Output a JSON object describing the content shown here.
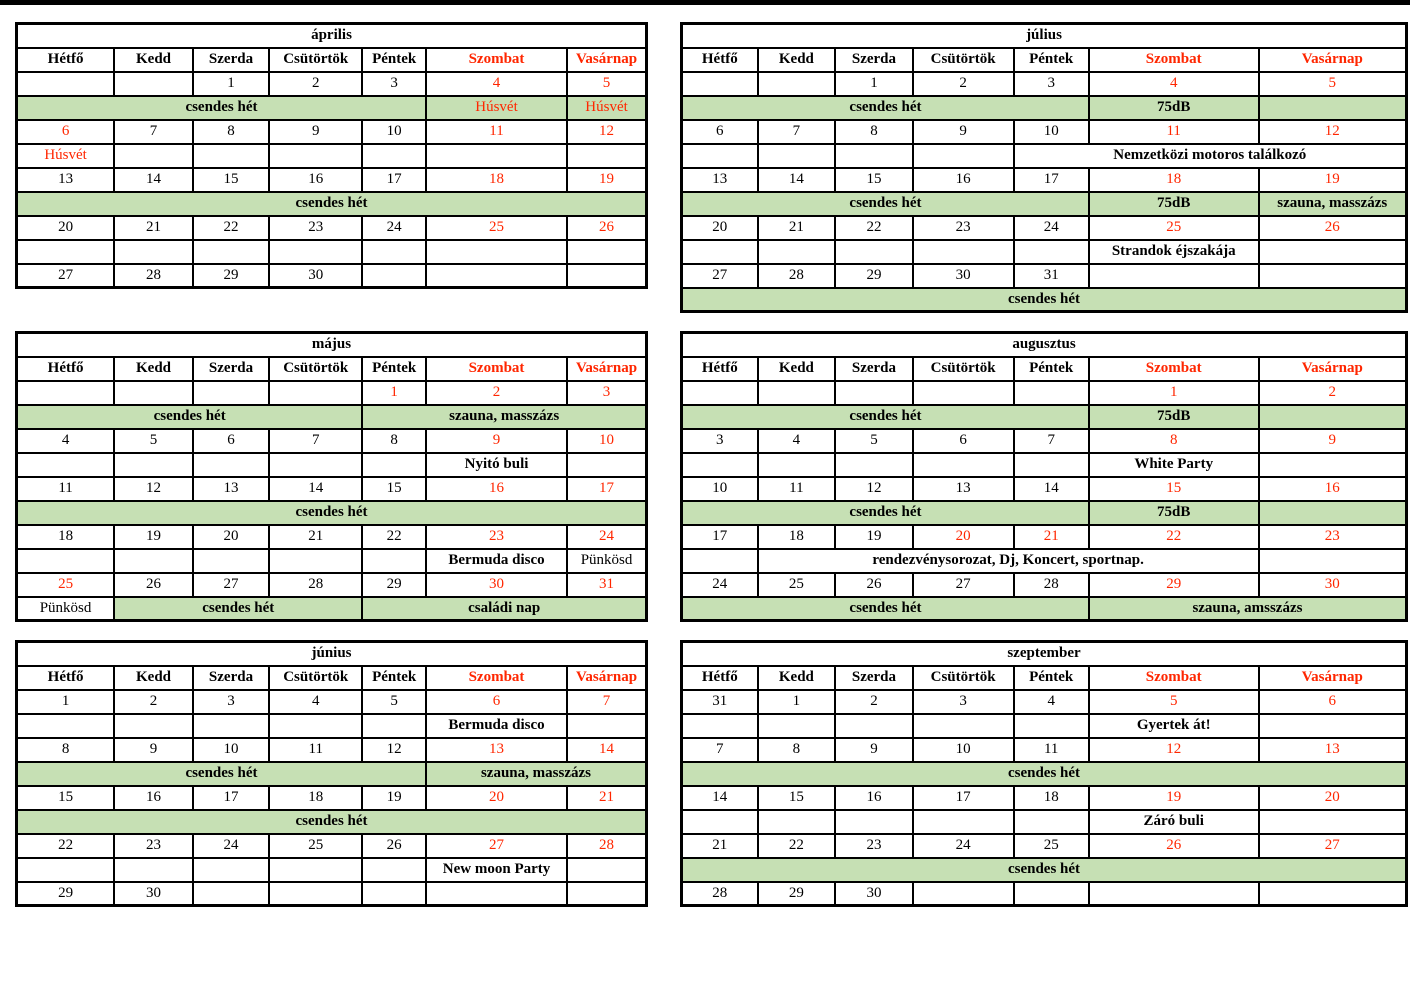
{
  "colors": {
    "red": "#ff2600",
    "green": "#c6e0b4",
    "border": "#000000",
    "top_rule": "#000000"
  },
  "weekdays": [
    "Hétfő",
    "Kedd",
    "Szerda",
    "Csütörtök",
    "Péntek",
    "Szombat",
    "Vasárnap"
  ],
  "legend": {
    "quiet_week_label": "csendes hét"
  },
  "months": [
    {
      "name": "április",
      "rows": [
        {
          "type": "d",
          "cells": [
            "",
            "",
            "1",
            "2",
            "3",
            "4",
            "5"
          ],
          "red": [
            5,
            6
          ]
        },
        {
          "type": "e",
          "cells": [
            {
              "t": "csendes hét",
              "span": 5,
              "green": true,
              "bold": true
            },
            {
              "t": "Húsvét",
              "green": true,
              "red": true
            },
            {
              "t": "Húsvét",
              "green": true,
              "red": true
            }
          ]
        },
        {
          "type": "d",
          "cells": [
            "6",
            "7",
            "8",
            "9",
            "10",
            "11",
            "12"
          ],
          "red": [
            0,
            5,
            6
          ]
        },
        {
          "type": "e",
          "cells": [
            {
              "t": "Húsvét",
              "red": true
            },
            {},
            {},
            {},
            {},
            {},
            {}
          ]
        },
        {
          "type": "d",
          "cells": [
            "13",
            "14",
            "15",
            "16",
            "17",
            "18",
            "19"
          ],
          "red": [
            5,
            6
          ]
        },
        {
          "type": "e",
          "cells": [
            {
              "t": "csendes hét",
              "span": 7,
              "green": true,
              "bold": true
            }
          ]
        },
        {
          "type": "d",
          "cells": [
            "20",
            "21",
            "22",
            "23",
            "24",
            "25",
            "26"
          ],
          "red": [
            5,
            6
          ]
        },
        {
          "type": "e",
          "cells": [
            {},
            {},
            {},
            {},
            {},
            {},
            {}
          ]
        },
        {
          "type": "d",
          "cells": [
            "27",
            "28",
            "29",
            "30",
            "",
            "",
            ""
          ],
          "red": []
        }
      ]
    },
    {
      "name": "július",
      "rows": [
        {
          "type": "d",
          "cells": [
            "",
            "",
            "1",
            "2",
            "3",
            "4",
            "5"
          ],
          "red": [
            5,
            6
          ]
        },
        {
          "type": "e",
          "cells": [
            {
              "t": "csendes hét",
              "span": 5,
              "green": true,
              "bold": true
            },
            {
              "t": "75dB",
              "green": true,
              "bold": true
            },
            {
              "green": true
            }
          ]
        },
        {
          "type": "d",
          "cells": [
            "6",
            "7",
            "8",
            "9",
            "10",
            "11",
            "12"
          ],
          "red": [
            5,
            6
          ]
        },
        {
          "type": "e",
          "cells": [
            {},
            {},
            {},
            {},
            {
              "t": "Nemzetközi motoros találkozó",
              "span": 3,
              "bold": true
            }
          ]
        },
        {
          "type": "d",
          "cells": [
            "13",
            "14",
            "15",
            "16",
            "17",
            "18",
            "19"
          ],
          "red": [
            5,
            6
          ]
        },
        {
          "type": "e",
          "cells": [
            {
              "t": "csendes hét",
              "span": 5,
              "green": true,
              "bold": true
            },
            {
              "t": "75dB",
              "green": true,
              "bold": true
            },
            {
              "t": "szauna, masszázs",
              "green": true,
              "bold": true
            }
          ]
        },
        {
          "type": "d",
          "cells": [
            "20",
            "21",
            "22",
            "23",
            "24",
            "25",
            "26"
          ],
          "red": [
            5,
            6
          ]
        },
        {
          "type": "e",
          "cells": [
            {},
            {},
            {},
            {},
            {},
            {
              "t": "Strandok éjszakája",
              "bold": true
            },
            {}
          ]
        },
        {
          "type": "d",
          "cells": [
            "27",
            "28",
            "29",
            "30",
            "31",
            "",
            ""
          ],
          "red": []
        },
        {
          "type": "e",
          "cells": [
            {
              "t": "csendes hét",
              "span": 7,
              "green": true,
              "bold": true
            }
          ]
        }
      ]
    },
    {
      "name": "május",
      "rows": [
        {
          "type": "d",
          "cells": [
            "",
            "",
            "",
            "",
            "1",
            "2",
            "3"
          ],
          "red": [
            4,
            5,
            6
          ]
        },
        {
          "type": "e",
          "cells": [
            {
              "t": "csendes hét",
              "span": 4,
              "green": true,
              "bold": true
            },
            {
              "t": "szauna, masszázs",
              "span": 3,
              "green": true,
              "bold": true
            }
          ]
        },
        {
          "type": "d",
          "cells": [
            "4",
            "5",
            "6",
            "7",
            "8",
            "9",
            "10"
          ],
          "red": [
            5,
            6
          ]
        },
        {
          "type": "e",
          "cells": [
            {},
            {},
            {},
            {},
            {},
            {
              "t": "Nyitó buli",
              "bold": true
            },
            {}
          ]
        },
        {
          "type": "d",
          "cells": [
            "11",
            "12",
            "13",
            "14",
            "15",
            "16",
            "17"
          ],
          "red": [
            5,
            6
          ]
        },
        {
          "type": "e",
          "cells": [
            {
              "t": "csendes hét",
              "span": 7,
              "green": true,
              "bold": true
            }
          ]
        },
        {
          "type": "d",
          "cells": [
            "18",
            "19",
            "20",
            "21",
            "22",
            "23",
            "24"
          ],
          "red": [
            5,
            6
          ]
        },
        {
          "type": "e",
          "cells": [
            {},
            {},
            {},
            {},
            {},
            {
              "t": "Bermuda disco",
              "bold": true
            },
            {
              "t": "Pünkösd"
            }
          ]
        },
        {
          "type": "d",
          "cells": [
            "25",
            "26",
            "27",
            "28",
            "29",
            "30",
            "31"
          ],
          "red": [
            0,
            5,
            6
          ]
        },
        {
          "type": "e",
          "cells": [
            {
              "t": "Pünkösd"
            },
            {
              "t": "csendes hét",
              "span": 3,
              "green": true,
              "bold": true
            },
            {
              "t": "családi nap",
              "span": 3,
              "green": true,
              "bold": true
            }
          ]
        }
      ]
    },
    {
      "name": "augusztus",
      "rows": [
        {
          "type": "d",
          "cells": [
            "",
            "",
            "",
            "",
            "",
            "1",
            "2"
          ],
          "red": [
            5,
            6
          ]
        },
        {
          "type": "e",
          "cells": [
            {
              "t": "csendes hét",
              "span": 5,
              "green": true,
              "bold": true
            },
            {
              "t": "75dB",
              "green": true,
              "bold": true
            },
            {
              "green": true
            }
          ]
        },
        {
          "type": "d",
          "cells": [
            "3",
            "4",
            "5",
            "6",
            "7",
            "8",
            "9"
          ],
          "red": [
            5,
            6
          ]
        },
        {
          "type": "e",
          "cells": [
            {},
            {},
            {},
            {},
            {},
            {
              "t": "White Party",
              "bold": true
            },
            {}
          ]
        },
        {
          "type": "d",
          "cells": [
            "10",
            "11",
            "12",
            "13",
            "14",
            "15",
            "16"
          ],
          "red": [
            5,
            6
          ]
        },
        {
          "type": "e",
          "cells": [
            {
              "t": "csendes hét",
              "span": 5,
              "green": true,
              "bold": true
            },
            {
              "t": "75dB",
              "green": true,
              "bold": true
            },
            {
              "green": true
            }
          ]
        },
        {
          "type": "d",
          "cells": [
            "17",
            "18",
            "19",
            "20",
            "21",
            "22",
            "23"
          ],
          "red": [
            3,
            4,
            5,
            6
          ]
        },
        {
          "type": "e",
          "cells": [
            {},
            {
              "t": "rendezvénysorozat, Dj, Koncert, sportnap.",
              "span": 5,
              "bold": true
            },
            {}
          ]
        },
        {
          "type": "d",
          "cells": [
            "24",
            "25",
            "26",
            "27",
            "28",
            "29",
            "30"
          ],
          "red": [
            5,
            6
          ]
        },
        {
          "type": "e",
          "cells": [
            {
              "t": "csendes hét",
              "span": 5,
              "green": true,
              "bold": true
            },
            {
              "t": "szauna, amsszázs",
              "span": 2,
              "green": true,
              "bold": true
            }
          ]
        }
      ]
    },
    {
      "name": "június",
      "rows": [
        {
          "type": "d",
          "cells": [
            "1",
            "2",
            "3",
            "4",
            "5",
            "6",
            "7"
          ],
          "red": [
            5,
            6
          ]
        },
        {
          "type": "e",
          "cells": [
            {},
            {},
            {},
            {},
            {},
            {
              "t": "Bermuda disco",
              "bold": true
            },
            {}
          ]
        },
        {
          "type": "d",
          "cells": [
            "8",
            "9",
            "10",
            "11",
            "12",
            "13",
            "14"
          ],
          "red": [
            5,
            6
          ]
        },
        {
          "type": "e",
          "cells": [
            {
              "t": "csendes hét",
              "span": 5,
              "green": true,
              "bold": true
            },
            {
              "t": "szauna, masszázs",
              "span": 2,
              "green": true,
              "bold": true
            }
          ]
        },
        {
          "type": "d",
          "cells": [
            "15",
            "16",
            "17",
            "18",
            "19",
            "20",
            "21"
          ],
          "red": [
            5,
            6
          ]
        },
        {
          "type": "e",
          "cells": [
            {
              "t": "csendes hét",
              "span": 7,
              "green": true,
              "bold": true
            }
          ]
        },
        {
          "type": "d",
          "cells": [
            "22",
            "23",
            "24",
            "25",
            "26",
            "27",
            "28"
          ],
          "red": [
            5,
            6
          ]
        },
        {
          "type": "e",
          "cells": [
            {},
            {},
            {},
            {},
            {},
            {
              "t": "New moon Party",
              "bold": true
            },
            {}
          ]
        },
        {
          "type": "d",
          "cells": [
            "29",
            "30",
            "",
            "",
            "",
            "",
            ""
          ],
          "red": []
        }
      ]
    },
    {
      "name": "szeptember",
      "rows": [
        {
          "type": "d",
          "cells": [
            "31",
            "1",
            "2",
            "3",
            "4",
            "5",
            "6"
          ],
          "red": [
            5,
            6
          ]
        },
        {
          "type": "e",
          "cells": [
            {},
            {},
            {},
            {},
            {},
            {
              "t": "Gyertek át!",
              "bold": true
            },
            {}
          ]
        },
        {
          "type": "d",
          "cells": [
            "7",
            "8",
            "9",
            "10",
            "11",
            "12",
            "13"
          ],
          "red": [
            5,
            6
          ]
        },
        {
          "type": "e",
          "cells": [
            {
              "t": "csendes hét",
              "span": 7,
              "green": true,
              "bold": true
            }
          ]
        },
        {
          "type": "d",
          "cells": [
            "14",
            "15",
            "16",
            "17",
            "18",
            "19",
            "20"
          ],
          "red": [
            5,
            6
          ]
        },
        {
          "type": "e",
          "cells": [
            {},
            {},
            {},
            {},
            {},
            {
              "t": "Záró buli",
              "bold": true
            },
            {}
          ]
        },
        {
          "type": "d",
          "cells": [
            "21",
            "22",
            "23",
            "24",
            "25",
            "26",
            "27"
          ],
          "red": [
            5,
            6
          ]
        },
        {
          "type": "e",
          "cells": [
            {
              "t": "csendes hét",
              "span": 7,
              "green": true,
              "bold": true
            }
          ]
        },
        {
          "type": "d",
          "cells": [
            "28",
            "29",
            "30",
            "",
            "",
            "",
            ""
          ],
          "red": []
        }
      ]
    }
  ]
}
